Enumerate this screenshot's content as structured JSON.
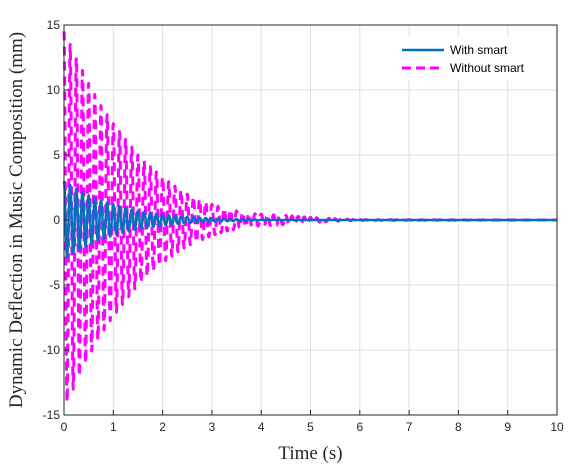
{
  "chart_data": {
    "type": "line",
    "title": "",
    "xlabel": "Time (s)",
    "ylabel": "Dynamic Deflection in Music Composition (mm)",
    "xlim": [
      0,
      10
    ],
    "ylim": [
      -15,
      15
    ],
    "xticks": [
      0,
      1,
      2,
      3,
      4,
      5,
      6,
      7,
      8,
      9,
      10
    ],
    "yticks": [
      -15,
      -10,
      -5,
      0,
      5,
      10,
      15
    ],
    "grid": true,
    "legend_position": "top-right",
    "series": [
      {
        "name": "With smart",
        "color": "#0072BD",
        "style": "solid",
        "oscillation_frequency_hz": 8.0,
        "x": [
          0,
          0.25,
          0.5,
          0.75,
          1.0,
          1.25,
          1.5,
          1.75,
          2.0,
          2.25,
          2.5,
          2.75,
          3.0,
          3.5,
          4.0,
          5.0,
          10.0
        ],
        "envelope": [
          3.0,
          2.4,
          1.9,
          1.5,
          1.2,
          0.9,
          0.7,
          0.55,
          0.42,
          0.32,
          0.24,
          0.18,
          0.13,
          0.07,
          0.03,
          0.0,
          0.0
        ]
      },
      {
        "name": "Without smart",
        "color": "#FF00FF",
        "style": "dashed",
        "oscillation_frequency_hz": 8.0,
        "x": [
          0,
          0.25,
          0.5,
          0.75,
          1.0,
          1.25,
          1.5,
          1.75,
          2.0,
          2.25,
          2.5,
          2.75,
          3.0,
          3.25,
          3.5,
          3.75,
          4.0,
          4.5,
          5.0,
          5.5,
          6.0,
          10.0
        ],
        "envelope": [
          14.5,
          12.5,
          10.5,
          8.8,
          7.4,
          6.2,
          5.0,
          4.1,
          3.3,
          2.6,
          2.0,
          1.6,
          1.2,
          0.9,
          0.7,
          0.5,
          0.45,
          0.35,
          0.2,
          0.1,
          0.03,
          0.0
        ]
      }
    ]
  }
}
